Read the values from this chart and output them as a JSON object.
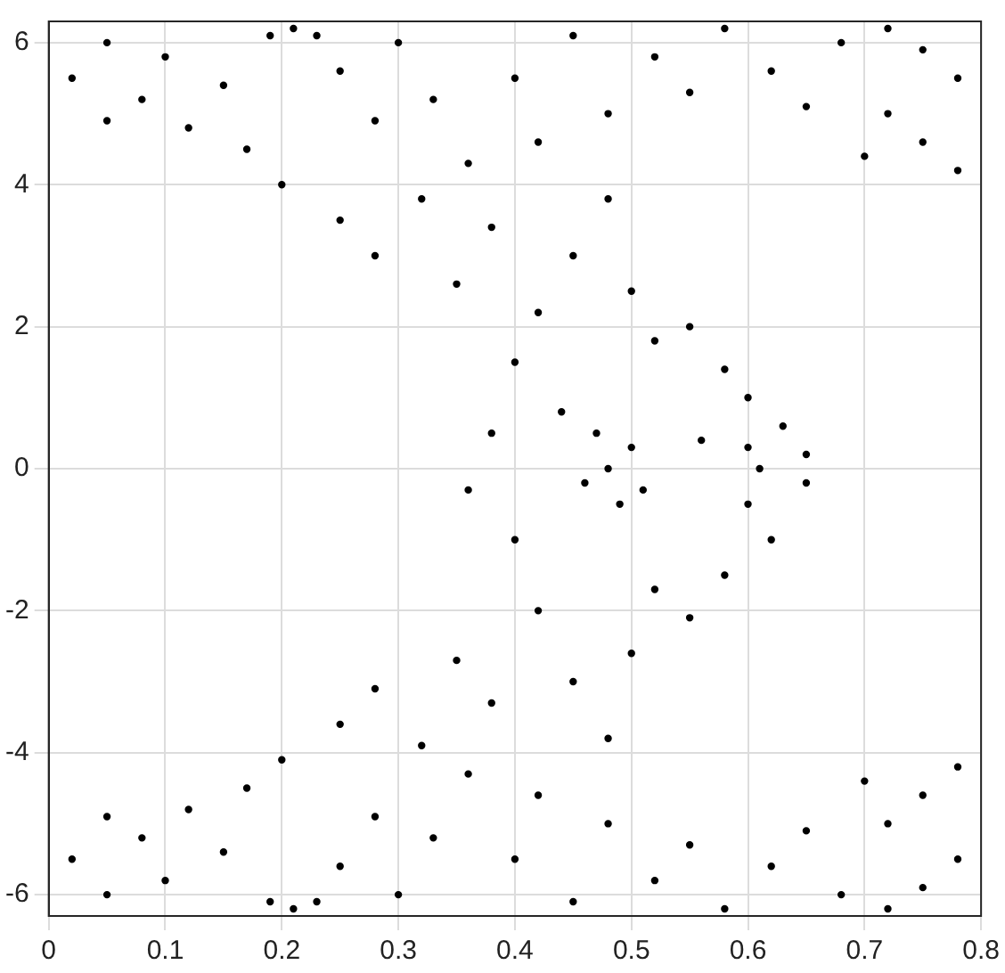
{
  "chart_data": {
    "type": "scatter",
    "color": "#000000",
    "marker": "circle",
    "grid": true,
    "xlim": [
      0,
      0.8
    ],
    "ylim": [
      -6.3,
      6.3
    ],
    "xticks": [
      0,
      0.1,
      0.2,
      0.3,
      0.4,
      0.5,
      0.6,
      0.7,
      0.8
    ],
    "yticks": [
      -6,
      -4,
      -2,
      0,
      2,
      4,
      6
    ],
    "x": [
      0.02,
      0.05,
      0.08,
      0.1,
      0.12,
      0.15,
      0.17,
      0.05,
      0.25,
      0.28,
      0.3,
      0.33,
      0.36,
      0.4,
      0.42,
      0.45,
      0.48,
      0.52,
      0.55,
      0.58,
      0.62,
      0.65,
      0.68,
      0.72,
      0.78,
      0.75,
      0.7,
      0.2,
      0.25,
      0.28,
      0.32,
      0.35,
      0.38,
      0.42,
      0.45,
      0.5,
      0.48,
      0.52,
      0.55,
      0.58,
      0.6,
      0.63,
      0.65,
      0.4,
      0.44,
      0.38,
      0.36,
      0.4,
      0.56,
      0.6,
      0.62,
      0.58,
      0.55,
      0.52,
      0.42,
      0.45,
      0.5,
      0.48,
      0.38,
      0.32,
      0.28,
      0.25,
      0.2,
      0.35,
      0.65,
      0.48,
      0.47,
      0.5,
      0.49,
      0.46,
      0.51,
      0.61,
      0.6,
      0.02,
      0.05,
      0.08,
      0.1,
      0.12,
      0.15,
      0.17,
      0.05,
      0.25,
      0.28,
      0.3,
      0.33,
      0.36,
      0.4,
      0.42,
      0.45,
      0.48,
      0.52,
      0.55,
      0.58,
      0.62,
      0.65,
      0.68,
      0.72,
      0.78,
      0.75,
      0.7,
      0.21,
      0.19,
      0.23,
      0.21,
      0.19,
      0.23,
      0.75,
      0.78,
      0.75,
      0.78,
      0.72,
      0.72
    ],
    "values": [
      5.5,
      6.0,
      5.2,
      5.8,
      4.8,
      5.4,
      4.5,
      4.9,
      5.6,
      4.9,
      6.0,
      5.2,
      4.3,
      5.5,
      4.6,
      6.1,
      5.0,
      5.8,
      5.3,
      6.2,
      5.6,
      5.1,
      6.0,
      5.0,
      4.2,
      4.6,
      4.4,
      4.0,
      3.5,
      3.0,
      3.8,
      2.6,
      3.4,
      2.2,
      3.0,
      2.5,
      3.8,
      1.8,
      2.0,
      1.4,
      1.0,
      0.6,
      0.2,
      1.5,
      0.8,
      0.5,
      -0.3,
      -1.0,
      0.4,
      -0.5,
      -1.0,
      -1.5,
      -2.1,
      -1.7,
      -2.0,
      -3.0,
      -2.6,
      -3.8,
      -3.3,
      -3.9,
      -3.1,
      -3.6,
      -4.1,
      -2.7,
      -0.2,
      0,
      0.5,
      0.3,
      -0.5,
      -0.2,
      -0.3,
      0,
      0.3,
      -5.5,
      -6.0,
      -5.2,
      -5.8,
      -4.8,
      -5.4,
      -4.5,
      -4.9,
      -5.6,
      -4.9,
      -6.0,
      -5.2,
      -4.3,
      -5.5,
      -4.6,
      -6.1,
      -5.0,
      -5.8,
      -5.3,
      -6.2,
      -5.6,
      -5.1,
      -6.0,
      -5.0,
      -4.2,
      -4.6,
      -4.4,
      6.2,
      6.1,
      6.1,
      -6.2,
      -6.1,
      -6.1,
      5.9,
      5.5,
      -5.9,
      -5.5,
      6.2,
      -6.2
    ]
  }
}
